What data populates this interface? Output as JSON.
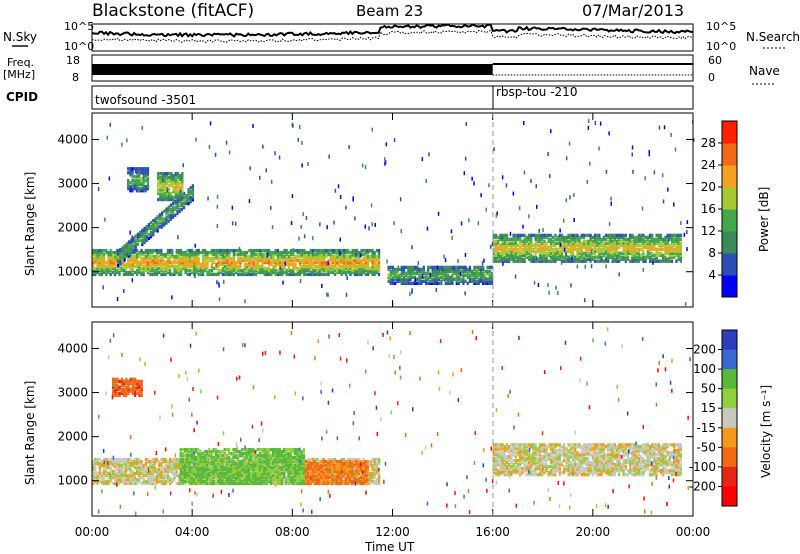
{
  "header": {
    "station": "Blackstone (fitACF)",
    "beam": "Beam 23",
    "date": "07/Mar/2013"
  },
  "side_labels": {
    "nsky": "N.Sky",
    "freq_line1": "Freq.",
    "freq_line2": "[MHz]",
    "cpid": "CPID",
    "nsearch": "N.Search",
    "nave": "Nave"
  },
  "noise_axis": {
    "ticks_left": [
      "10^5",
      "10^0"
    ],
    "ticks_right": [
      "10^5",
      "10^0"
    ]
  },
  "freq_axis": {
    "ticks_left": [
      "18",
      "8"
    ],
    "ticks_right": [
      "60",
      "0"
    ]
  },
  "cpid_segments": [
    {
      "label": "twofsound -3501",
      "start_hour": 0,
      "end_hour": 16
    },
    {
      "label": "rbsp-tou -210",
      "start_hour": 16,
      "end_hour": 24
    }
  ],
  "colors": {
    "power": [
      "#0000ff",
      "#2a50b8",
      "#3c8a5a",
      "#43a84a",
      "#a8c830",
      "#f4a020",
      "#f06a18",
      "#ff2000"
    ],
    "velocity": [
      "#2b3cbf",
      "#3a6ad0",
      "#57b83c",
      "#8fcf40",
      "#c8c8c0",
      "#f39a1a",
      "#f06a16",
      "#e82418",
      "#ff0000"
    ]
  },
  "chart_data": [
    {
      "type": "heatmap",
      "panel": "power",
      "xlabel": "",
      "ylabel": "Slant Range [km]",
      "xlim_hours": [
        0,
        24
      ],
      "ylim_km": [
        200,
        4600
      ],
      "y_ticks": [
        1000,
        2000,
        3000,
        4000
      ],
      "colorbar": {
        "label": "Power [dB]",
        "ticks": [
          4,
          8,
          12,
          16,
          20,
          24,
          28
        ],
        "range": [
          0,
          32
        ]
      },
      "features": [
        {
          "name": "main band",
          "t_start": 0.0,
          "t_end": 11.5,
          "range_low_km": 900,
          "range_high_km": 1450,
          "power_db": 20
        },
        {
          "name": "rising arc",
          "t_start": 1.0,
          "t_end": 4.0,
          "range_low_km": 1300,
          "range_high_km": 2700,
          "power_db": 12
        },
        {
          "name": "patch",
          "t_start": 2.6,
          "t_end": 3.6,
          "range_low_km": 2600,
          "range_high_km": 3200,
          "power_db": 18
        },
        {
          "name": "patch",
          "t_start": 1.4,
          "t_end": 2.2,
          "range_low_km": 2800,
          "range_high_km": 3300,
          "power_db": 12
        },
        {
          "name": "post-noon band",
          "t_start": 11.8,
          "t_end": 16.0,
          "range_low_km": 700,
          "range_high_km": 1100,
          "power_db": 12
        },
        {
          "name": "evening band",
          "t_start": 16.0,
          "t_end": 23.5,
          "range_low_km": 1200,
          "range_high_km": 1800,
          "power_db": 18
        }
      ]
    },
    {
      "type": "heatmap",
      "panel": "velocity",
      "xlabel": "Time UT",
      "ylabel": "Slant Range [km]",
      "xlim_hours": [
        0,
        24
      ],
      "ylim_km": [
        200,
        4600
      ],
      "y_ticks": [
        1000,
        2000,
        3000,
        4000
      ],
      "x_ticks": [
        "00:00",
        "04:00",
        "08:00",
        "12:00",
        "16:00",
        "20:00",
        "00:00"
      ],
      "colorbar": {
        "label": "Velocity [m s⁻¹]",
        "ticks": [
          200,
          100,
          50,
          15,
          -15,
          -50,
          -100,
          -200
        ]
      },
      "features": [
        {
          "name": "ground scatter band",
          "t_start": 0.0,
          "t_end": 11.5,
          "range_low_km": 900,
          "range_high_km": 1450,
          "velocity": 0
        },
        {
          "name": "positive flow",
          "t_start": 3.5,
          "t_end": 8.5,
          "range_low_km": 900,
          "range_high_km": 1700,
          "velocity": 60
        },
        {
          "name": "negative flow",
          "t_start": 8.5,
          "t_end": 11.0,
          "range_low_km": 900,
          "range_high_km": 1400,
          "velocity": -60
        },
        {
          "name": "patch",
          "t_start": 0.8,
          "t_end": 2.0,
          "range_low_km": 2900,
          "range_high_km": 3300,
          "velocity": -80
        },
        {
          "name": "evening band",
          "t_start": 16.0,
          "t_end": 23.5,
          "range_low_km": 1100,
          "range_high_km": 1800,
          "velocity": 0
        }
      ]
    }
  ]
}
